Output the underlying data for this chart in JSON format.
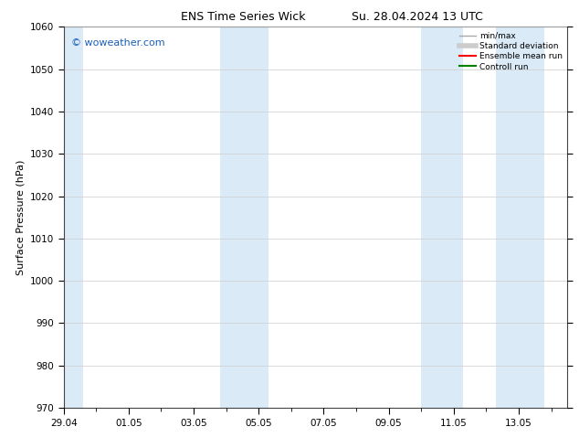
{
  "title_left": "ENS Time Series Wick",
  "title_right": "Su. 28.04.2024 13 UTC",
  "ylabel": "Surface Pressure (hPa)",
  "ylim": [
    970,
    1060
  ],
  "yticks": [
    970,
    980,
    990,
    1000,
    1010,
    1020,
    1030,
    1040,
    1050,
    1060
  ],
  "xlim_start": 0,
  "xlim_end": 15.5,
  "xtick_labels": [
    "29.04",
    "01.05",
    "03.05",
    "05.05",
    "07.05",
    "09.05",
    "11.05",
    "13.05"
  ],
  "xtick_positions": [
    0,
    2,
    4,
    6,
    8,
    10,
    12,
    14
  ],
  "shaded_bands": [
    {
      "x_start": -0.1,
      "x_end": 0.6
    },
    {
      "x_start": 4.8,
      "x_end": 6.3
    },
    {
      "x_start": 11.0,
      "x_end": 12.3
    },
    {
      "x_start": 13.3,
      "x_end": 14.8
    }
  ],
  "band_color": "#daeaf7",
  "watermark_text": "© woweather.com",
  "watermark_color": "#1a5fb4",
  "legend_entries": [
    {
      "label": "min/max",
      "color": "#aaaaaa",
      "lw": 1.0
    },
    {
      "label": "Standard deviation",
      "color": "#cccccc",
      "lw": 4
    },
    {
      "label": "Ensemble mean run",
      "color": "red",
      "lw": 1.5
    },
    {
      "label": "Controll run",
      "color": "green",
      "lw": 1.5
    }
  ],
  "bg_color": "#ffffff",
  "grid_color": "#cccccc",
  "title_fontsize": 9,
  "axis_label_fontsize": 8,
  "tick_fontsize": 7.5,
  "watermark_fontsize": 8,
  "legend_fontsize": 6.5
}
